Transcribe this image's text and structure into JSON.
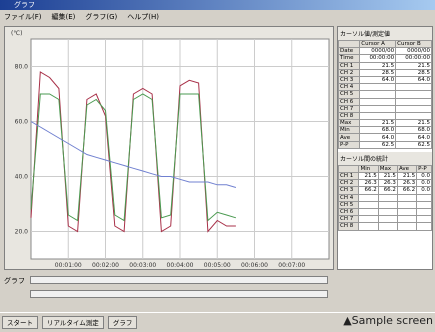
{
  "window": {
    "title": "グラフ",
    "menu": [
      "ファイル(F)",
      "編集(E)",
      "グラフ(G)",
      "ヘルプ(H)"
    ]
  },
  "chart_data": {
    "type": "line",
    "y_unit": "(℃)",
    "x": [
      0,
      15,
      30,
      45,
      60,
      75,
      90,
      105,
      120,
      135,
      150,
      165,
      180,
      195,
      210,
      225,
      240,
      255,
      270,
      285,
      300,
      315,
      330
    ],
    "series": [
      {
        "color": "#a83048",
        "values": [
          25,
          78,
          76,
          72,
          22,
          20,
          68,
          70,
          62,
          22,
          20,
          70,
          72,
          70,
          20,
          22,
          73,
          75,
          74,
          20,
          24,
          22,
          22
        ]
      },
      {
        "color": "#4a9a50",
        "values": [
          28,
          70,
          70,
          68,
          26,
          24,
          66,
          68,
          64,
          26,
          24,
          68,
          70,
          68,
          25,
          26,
          70,
          70,
          70,
          24,
          27,
          26,
          25
        ]
      },
      {
        "color": "#7080d0",
        "values": [
          60,
          58,
          56,
          54,
          52,
          50,
          48,
          47,
          46,
          45,
          44,
          43,
          42,
          41,
          40,
          40,
          39,
          38,
          38,
          38,
          37,
          37,
          36
        ]
      }
    ],
    "xlim": [
      0,
      480
    ],
    "ylim": [
      10,
      90
    ],
    "xticks": [
      {
        "value": 60,
        "label": "00:01:00"
      },
      {
        "value": 120,
        "label": "00:02:00"
      },
      {
        "value": 180,
        "label": "00:03:00"
      },
      {
        "value": 240,
        "label": "00:04:00"
      },
      {
        "value": 300,
        "label": "00:05:00"
      },
      {
        "value": 360,
        "label": "00:06:00"
      },
      {
        "value": 420,
        "label": "00:07:00"
      }
    ],
    "yticks": [
      {
        "value": 20,
        "label": "20.0"
      },
      {
        "value": 40,
        "label": "40.0"
      },
      {
        "value": 60,
        "label": "60.0"
      },
      {
        "value": 80,
        "label": "80.0"
      }
    ],
    "grid": true
  },
  "cursor_panel": {
    "title": "カーソル値/測定値",
    "columns": [
      null,
      "Cursor A",
      "Cursor B"
    ],
    "rows": [
      [
        "Date",
        "0000/00",
        "0000/00"
      ],
      [
        "Time",
        "00:00:00",
        "00:00:00"
      ],
      [
        "CH 1",
        "21.5",
        "21.5"
      ],
      [
        "CH 2",
        "28.5",
        "28.5"
      ],
      [
        "CH 3",
        "64.0",
        "64.0"
      ],
      [
        "CH 4",
        null,
        null
      ],
      [
        "CH 5",
        null,
        null
      ],
      [
        "CH 6",
        null,
        null
      ],
      [
        "CH 7",
        null,
        null
      ],
      [
        "CH 8",
        null,
        null
      ],
      [
        "Max",
        "21.5",
        "21.5"
      ],
      [
        "Min",
        "68.0",
        "68.0"
      ],
      [
        "Ave",
        "64.0",
        "64.0"
      ],
      [
        "P-P",
        "62.5",
        "62.5"
      ]
    ]
  },
  "stats_panel": {
    "title": "カーソル間の統計",
    "columns": [
      null,
      "Min",
      "Max",
      "Ave",
      "P-P"
    ],
    "rows": [
      [
        "CH 1",
        "21.5",
        "21.5",
        "21.5",
        "0.0"
      ],
      [
        "CH 2",
        "26.3",
        "26.3",
        "26.3",
        "0.0"
      ],
      [
        "CH 3",
        "66.2",
        "66.2",
        "66.2",
        "0.0"
      ],
      [
        "CH 4",
        null,
        null,
        null,
        null
      ],
      [
        "CH 5",
        null,
        null,
        null,
        null
      ],
      [
        "CH 6",
        null,
        null,
        null,
        null
      ],
      [
        "CH 7",
        null,
        null,
        null,
        null
      ],
      [
        "CH 8",
        null,
        null,
        null,
        null
      ]
    ]
  },
  "graph_label": "グラフ",
  "taskbar": [
    "スタート",
    "リアルタイム測定",
    "グラフ"
  ],
  "caption": "▲Sample screen"
}
